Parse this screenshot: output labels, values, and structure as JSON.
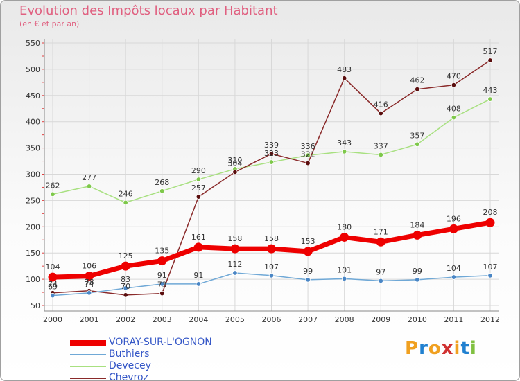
{
  "title": "Evolution des Impôts locaux par Habitant",
  "subtitle": "(en € et par an)",
  "logo": {
    "text": "Proxiti",
    "letters": [
      "P",
      "r",
      "o",
      "x",
      "i",
      "t",
      "i"
    ],
    "colors": [
      "#f0a020",
      "#2080d0",
      "#f0a020",
      "#d03030",
      "#f0a020",
      "#2080d0",
      "#80c040"
    ]
  },
  "chart_data": {
    "type": "line",
    "title": "Evolution des Impôts locaux par Habitant",
    "subtitle": "(en € et par an)",
    "xlabel": "",
    "ylabel": "",
    "ylim": [
      50,
      550
    ],
    "yticks": [
      50,
      100,
      150,
      200,
      250,
      300,
      350,
      400,
      450,
      500,
      550
    ],
    "grid": true,
    "legend_position": "bottom-left",
    "categories": [
      "2000",
      "2001",
      "2002",
      "2003",
      "2004",
      "2005",
      "2006",
      "2007",
      "2008",
      "2009",
      "2010",
      "2011",
      "2012"
    ],
    "series": [
      {
        "name": "VORAY-SUR-L'OGNON",
        "color": "#ee0000",
        "marker": "#ee0000",
        "width": 7,
        "values": [
          104,
          106,
          125,
          135,
          161,
          158,
          158,
          153,
          180,
          171,
          184,
          196,
          208
        ]
      },
      {
        "name": "Buthiers",
        "color": "#6fa8d6",
        "marker": "#4a86c5",
        "width": 1.5,
        "values": [
          69,
          74,
          83,
          91,
          91,
          112,
          107,
          99,
          101,
          97,
          99,
          104,
          107
        ]
      },
      {
        "name": "Devecey",
        "color": "#a8e080",
        "marker": "#7ec84a",
        "width": 1.5,
        "values": [
          262,
          277,
          246,
          268,
          290,
          310,
          323,
          336,
          343,
          337,
          357,
          408,
          443
        ]
      },
      {
        "name": "Chevroz",
        "color": "#8a2a2a",
        "marker": "#5a0e0e",
        "width": 1.5,
        "values": [
          74,
          78,
          70,
          73,
          257,
          304,
          339,
          321,
          483,
          416,
          462,
          470,
          517
        ]
      }
    ]
  }
}
